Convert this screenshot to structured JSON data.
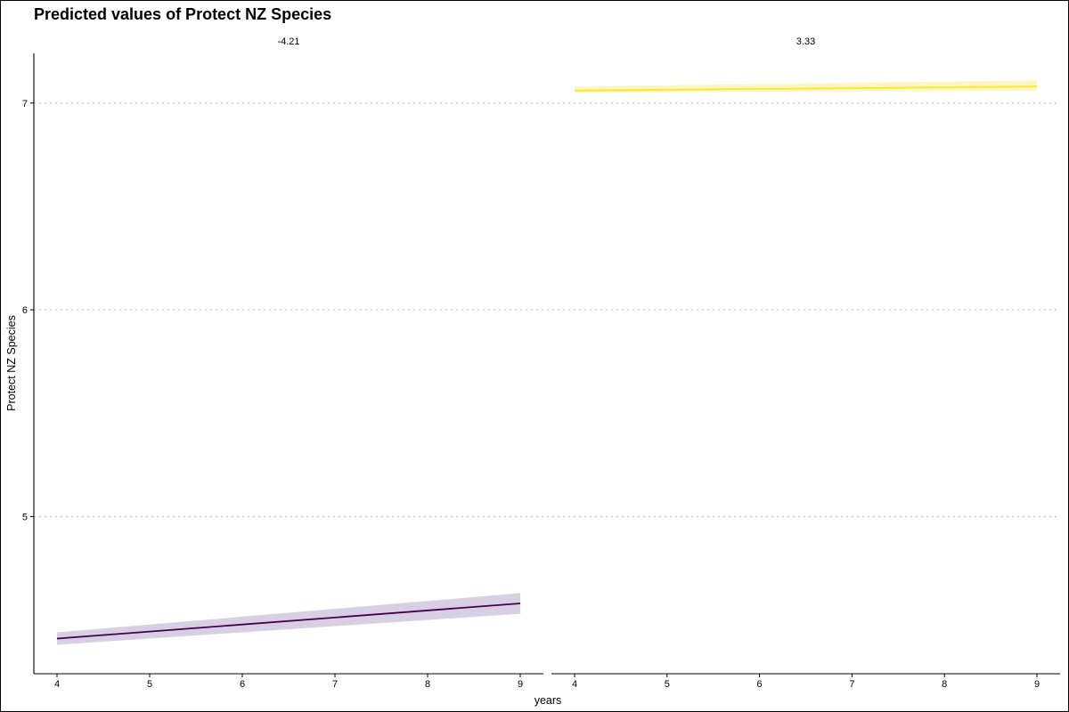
{
  "chart_data": {
    "type": "line",
    "title": "Predicted values of Protect NZ Species",
    "xlabel": "years",
    "ylabel": "Protect NZ Species",
    "xlim": [
      4,
      9
    ],
    "ylim": [
      4.24,
      7.24
    ],
    "x_ticks": [
      "4",
      "5",
      "6",
      "7",
      "8",
      "9"
    ],
    "y_ticks": [
      "5",
      "6",
      "7"
    ],
    "y_grid": [
      5,
      6,
      7
    ],
    "grid": "horizontal-dotted",
    "facets": [
      {
        "label": "-4.21",
        "color": "#440154",
        "ribbon_color": "#d9cfe2",
        "x": [
          4,
          9
        ],
        "y": [
          4.41,
          4.58
        ],
        "lower": [
          4.38,
          4.53
        ],
        "upper": [
          4.44,
          4.63
        ]
      },
      {
        "label": "3.33",
        "color": "#fde725",
        "ribbon_color": "#fef6c2",
        "x": [
          4,
          9
        ],
        "y": [
          7.06,
          7.08
        ],
        "lower": [
          7.05,
          7.06
        ],
        "upper": [
          7.08,
          7.11
        ]
      }
    ]
  }
}
